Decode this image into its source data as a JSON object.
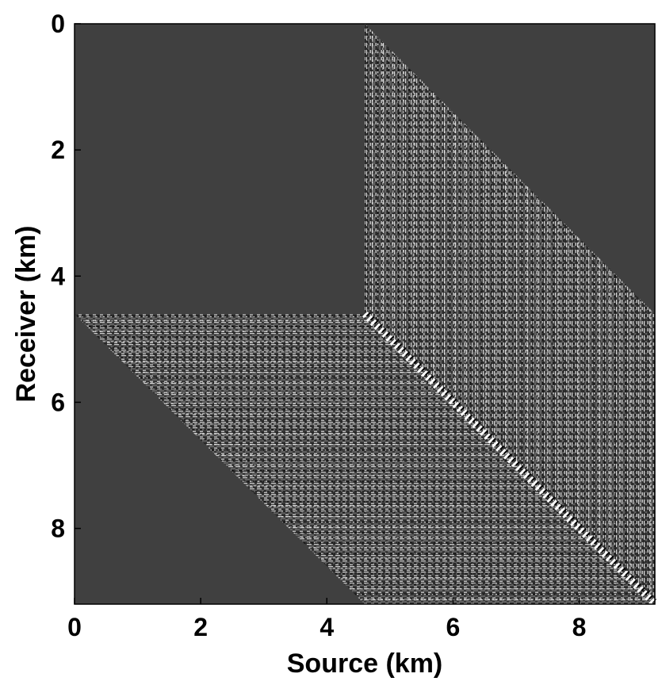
{
  "chart_data": {
    "type": "image",
    "xlabel": "Source (km)",
    "ylabel": "Receiver (km)",
    "xlim": [
      0,
      9.2
    ],
    "ylim": [
      9.2,
      0
    ],
    "xticks": [
      0,
      2,
      4,
      6,
      8
    ],
    "yticks": [
      0,
      2,
      4,
      6,
      8
    ]
  }
}
